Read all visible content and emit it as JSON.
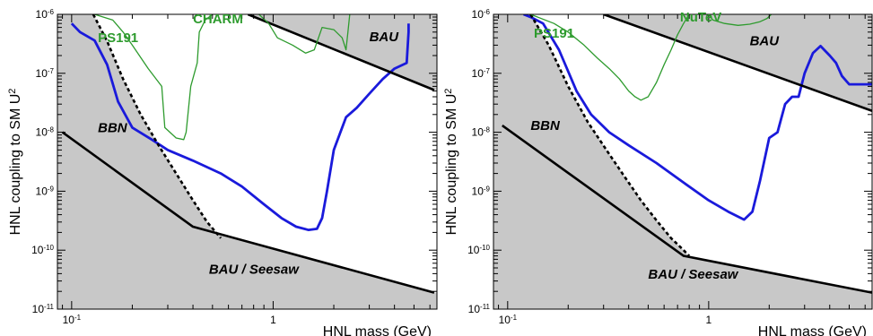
{
  "chart_data": [
    {
      "type": "line",
      "title": "",
      "xlabel": "HNL mass (GeV)",
      "ylabel": "HNL coupling to SM U",
      "ylabel_sup": "2",
      "xscale": "log",
      "yscale": "log",
      "xlim": [
        0.085,
        6.5
      ],
      "ylim": [
        1e-11,
        1e-06
      ],
      "xticks": [
        {
          "value": 0.1,
          "base": "10",
          "exp": "-1"
        },
        {
          "value": 1,
          "base": "1",
          "exp": ""
        }
      ],
      "yticks": [
        {
          "value": 1e-06,
          "base": "10",
          "exp": "-6"
        },
        {
          "value": 1e-07,
          "base": "10",
          "exp": "-7"
        },
        {
          "value": 1e-08,
          "base": "10",
          "exp": "-8"
        },
        {
          "value": 1e-09,
          "base": "10",
          "exp": "-9"
        },
        {
          "value": 1e-10,
          "base": "10",
          "exp": "-10"
        },
        {
          "value": 1e-11,
          "base": "10",
          "exp": "-11"
        }
      ],
      "grid": false,
      "colors": {
        "shade": "#c8c8c8",
        "sensitivity": "#1a1adb",
        "experiments": "#2e9b2e",
        "bounds": "#000000"
      },
      "series": [
        {
          "style": "blue",
          "x": [
            0.1,
            0.11,
            0.13,
            0.15,
            0.17,
            0.2,
            0.25,
            0.3,
            0.4,
            0.55,
            0.7,
            0.9,
            1.1,
            1.3,
            1.5,
            1.65,
            1.75,
            1.85,
            2.0,
            2.3,
            2.6,
            3.0,
            3.5,
            4.0,
            4.6,
            4.7,
            4.7
          ],
          "y": [
            7e-07,
            5e-07,
            3.6e-07,
            1.4e-07,
            3.3e-08,
            1.2e-08,
            7.5e-09,
            5e-09,
            3.3e-09,
            2e-09,
            1.2e-09,
            6e-10,
            3.5e-10,
            2.5e-10,
            2.2e-10,
            2.3e-10,
            3.5e-10,
            1e-09,
            5e-09,
            1.8e-08,
            2.6e-08,
            4.5e-08,
            8e-08,
            1.2e-07,
            1.5e-07,
            5e-07,
            7e-07
          ]
        },
        {
          "style": "dashed",
          "x": [
            0.128,
            0.15,
            0.18,
            0.22,
            0.27,
            0.33,
            0.4,
            0.47,
            0.55
          ],
          "y": [
            1e-06,
            3.5e-07,
            8e-08,
            2e-08,
            6e-09,
            2e-09,
            7e-10,
            3e-10,
            1.6e-10
          ]
        },
        {
          "style": "solid",
          "x": [
            0.09,
            0.4,
            6.3
          ],
          "y": [
            1e-08,
            2.5e-10,
            1.9e-11
          ]
        },
        {
          "style": "solid",
          "x": [
            0.75,
            6.3
          ],
          "y": [
            1e-06,
            5.2e-08
          ]
        },
        {
          "style": "green",
          "x": [
            0.13,
            0.16,
            0.18,
            0.2,
            0.24,
            0.28,
            0.29,
            0.33,
            0.36,
            0.37,
            0.39,
            0.42,
            0.43,
            0.46,
            0.5
          ],
          "y": [
            1e-06,
            8e-07,
            5e-07,
            3e-07,
            1.2e-07,
            6e-08,
            1.2e-08,
            8e-09,
            7.5e-09,
            1e-08,
            6e-08,
            1.5e-07,
            5e-07,
            8e-07,
            1e-06
          ]
        },
        {
          "style": "green",
          "x": [
            0.85,
            0.95,
            1.05,
            1.25,
            1.45,
            1.6,
            1.75,
            2.0,
            2.2,
            2.3,
            2.35,
            2.4
          ],
          "y": [
            1e-06,
            7e-07,
            4e-07,
            3e-07,
            2.2e-07,
            2.5e-07,
            6e-07,
            5.5e-07,
            4e-07,
            2.5e-07,
            5e-07,
            1e-06
          ]
        }
      ],
      "annotations": [
        {
          "text": "PS191",
          "x": 0.135,
          "y": 3.4e-07,
          "color": "green"
        },
        {
          "text": "CHARM",
          "x": 0.4,
          "y": 7e-07,
          "color": "green"
        },
        {
          "text": "BAU",
          "x": 3.0,
          "y": 3.5e-07,
          "color": "black"
        },
        {
          "text": "BBN",
          "x": 0.135,
          "y": 1e-08,
          "color": "black"
        },
        {
          "text": "BAU / Seesaw",
          "x": 0.48,
          "y": 4e-11,
          "color": "black"
        }
      ]
    },
    {
      "type": "line",
      "title": "",
      "xlabel": "HNL mass (GeV)",
      "ylabel": "HNL coupling to SM U",
      "ylabel_sup": "2",
      "xscale": "log",
      "yscale": "log",
      "xlim": [
        0.085,
        6.5
      ],
      "ylim": [
        1e-11,
        1e-06
      ],
      "xticks": [
        {
          "value": 0.1,
          "base": "10",
          "exp": "-1"
        },
        {
          "value": 1,
          "base": "1",
          "exp": ""
        }
      ],
      "yticks": [
        {
          "value": 1e-06,
          "base": "10",
          "exp": "-6"
        },
        {
          "value": 1e-07,
          "base": "10",
          "exp": "-7"
        },
        {
          "value": 1e-08,
          "base": "10",
          "exp": "-8"
        },
        {
          "value": 1e-09,
          "base": "10",
          "exp": "-9"
        },
        {
          "value": 1e-10,
          "base": "10",
          "exp": "-10"
        },
        {
          "value": 1e-11,
          "base": "10",
          "exp": "-11"
        }
      ],
      "grid": false,
      "colors": {
        "shade": "#c8c8c8",
        "sensitivity": "#1a1adb",
        "experiments": "#2e9b2e",
        "bounds": "#000000"
      },
      "series": [
        {
          "style": "blue",
          "x": [
            0.12,
            0.13,
            0.15,
            0.18,
            0.22,
            0.26,
            0.32,
            0.4,
            0.55,
            0.75,
            1.0,
            1.25,
            1.5,
            1.65,
            1.8,
            2.0,
            2.2,
            2.4,
            2.6,
            2.8,
            3.0,
            3.3,
            3.6,
            4.0,
            4.3,
            4.6,
            5.0,
            5.8,
            6.5
          ],
          "y": [
            1e-06,
            9e-07,
            7e-07,
            2.5e-07,
            5e-08,
            2e-08,
            1e-08,
            6e-09,
            3e-09,
            1.4e-09,
            7e-10,
            4.5e-10,
            3.3e-10,
            4.5e-10,
            1.5e-09,
            8e-09,
            1e-08,
            3e-08,
            4e-08,
            4e-08,
            1e-07,
            2.2e-07,
            2.9e-07,
            2e-07,
            1.5e-07,
            9e-08,
            6.5e-08,
            6.5e-08,
            6.5e-08
          ]
        },
        {
          "style": "dashed",
          "x": [
            0.13,
            0.16,
            0.2,
            0.25,
            0.31,
            0.38,
            0.46,
            0.55,
            0.65,
            0.75,
            0.8
          ],
          "y": [
            1e-06,
            3e-07,
            6e-08,
            1.5e-08,
            5e-09,
            1.8e-09,
            7e-10,
            3.2e-10,
            1.6e-10,
            1e-10,
            8e-11
          ]
        },
        {
          "style": "solid",
          "x": [
            0.094,
            0.75,
            6.5
          ],
          "y": [
            1.3e-08,
            8e-11,
            1.9e-11
          ]
        },
        {
          "style": "solid",
          "x": [
            0.3,
            6.5
          ],
          "y": [
            1e-06,
            2.3e-08
          ]
        },
        {
          "style": "green",
          "x": [
            0.13,
            0.17,
            0.2,
            0.24,
            0.28,
            0.32,
            0.36,
            0.4,
            0.43,
            0.46,
            0.5,
            0.55,
            0.6,
            0.65,
            0.7,
            0.75,
            0.8
          ],
          "y": [
            1e-06,
            7e-07,
            5e-07,
            3e-07,
            1.8e-07,
            1.2e-07,
            8e-08,
            5e-08,
            4e-08,
            3.5e-08,
            4e-08,
            7e-08,
            1.4e-07,
            2.5e-07,
            4.5e-07,
            7e-07,
            1e-06
          ]
        },
        {
          "style": "green",
          "x": [
            1.0,
            1.05,
            1.2,
            1.4,
            1.6,
            1.8,
            1.95,
            2.05
          ],
          "y": [
            1e-06,
            8e-07,
            7e-07,
            6.5e-07,
            6.8e-07,
            7.5e-07,
            8.5e-07,
            1e-06
          ]
        }
      ],
      "annotations": [
        {
          "text": "PS191",
          "x": 0.135,
          "y": 4e-07,
          "color": "green"
        },
        {
          "text": "NuTeV",
          "x": 0.72,
          "y": 7.5e-07,
          "color": "green"
        },
        {
          "text": "BAU",
          "x": 1.6,
          "y": 3e-07,
          "color": "black"
        },
        {
          "text": "BBN",
          "x": 0.13,
          "y": 1.1e-08,
          "color": "black"
        },
        {
          "text": "BAU / Seesaw",
          "x": 0.5,
          "y": 3.3e-11,
          "color": "black"
        }
      ]
    }
  ]
}
